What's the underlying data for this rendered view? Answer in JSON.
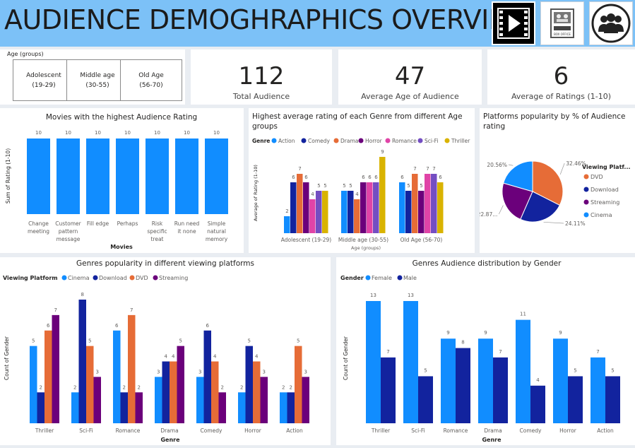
{
  "header": {
    "title": "AUDIENCE DEMOGHRAPHICS OVERVIEW",
    "icons": [
      "video-play-icon",
      "box-office-icon",
      "audience-group-icon"
    ],
    "box_office_label": "BOX OFFICE"
  },
  "slicer": {
    "title": "Age (groups)",
    "items": [
      {
        "name": "Adolescent",
        "range": "(19-29)"
      },
      {
        "name": "Middle age",
        "range": "(30-55)"
      },
      {
        "name": "Old Age",
        "range": "(56-70)"
      }
    ]
  },
  "kpis": [
    {
      "value": "112",
      "label": "Total Audience"
    },
    {
      "value": "47",
      "label": "Average Age of Audience"
    },
    {
      "value": "6",
      "label": "Average of Ratings (1-10)"
    }
  ],
  "colors": {
    "cinema": "#118dff",
    "download": "#12239e",
    "dvd": "#e66c37",
    "streaming": "#6b007b",
    "action": "#118dff",
    "comedy": "#12239e",
    "drama": "#e66c37",
    "horror": "#6b007b",
    "romance": "#e044a7",
    "scifi": "#744ec2",
    "thriller": "#d9b300",
    "female": "#118dff",
    "male": "#12239e"
  },
  "chart_data": [
    {
      "id": "top-movies",
      "type": "bar",
      "title": "Movies with the highest Audience Rating",
      "xlabel": "Movies",
      "ylabel": "Sum of Rating (1-10)",
      "categories": [
        [
          "Change",
          "meeting"
        ],
        [
          "Customer",
          "pattern",
          "message"
        ],
        [
          "Fill edge"
        ],
        [
          "Perhaps"
        ],
        [
          "Risk",
          "specific",
          "treat"
        ],
        [
          "Run need",
          "it none"
        ],
        [
          "Simple",
          "natural",
          "memory"
        ]
      ],
      "values": [
        10,
        10,
        10,
        10,
        10,
        10,
        10
      ],
      "ylim": [
        0,
        10
      ]
    },
    {
      "id": "genre-age",
      "type": "bar",
      "title": "Highest average rating of each Genre from different Age groups",
      "legend_title": "Genre",
      "xlabel": "Age (groups)",
      "ylabel": "Average of Rating (1-10)",
      "categories": [
        "Adolescent (19-29)",
        "Middle age (30-55)",
        "Old Age (56-70)"
      ],
      "series": [
        {
          "name": "Action",
          "values": [
            2,
            5,
            6
          ]
        },
        {
          "name": "Comedy",
          "values": [
            6,
            5,
            5
          ]
        },
        {
          "name": "Drama",
          "values": [
            7,
            4,
            7
          ]
        },
        {
          "name": "Horror",
          "values": [
            6,
            6,
            5
          ]
        },
        {
          "name": "Romance",
          "values": [
            4,
            6,
            7
          ]
        },
        {
          "name": "Sci-Fi",
          "values": [
            5,
            6,
            7
          ]
        },
        {
          "name": "Thriller",
          "values": [
            5,
            9,
            6
          ]
        }
      ],
      "ylim": [
        0,
        10
      ]
    },
    {
      "id": "platform-pie",
      "type": "pie",
      "title": "Platforms popularity by % of Audience rating",
      "legend_title": "Viewing Platf...",
      "labels": [
        "DVD",
        "Download",
        "Streaming",
        "Cinema"
      ],
      "values": [
        32.46,
        24.11,
        22.87,
        20.56
      ],
      "value_labels": [
        "32.46%",
        "24.11%",
        "22.87...",
        "20.56%"
      ]
    },
    {
      "id": "genre-platform",
      "type": "bar",
      "title": "Genres popularity in different viewing platforms",
      "legend_title": "Viewing Platform",
      "xlabel": "Genre",
      "ylabel": "Count of Gender",
      "categories": [
        "Thriller",
        "Sci-Fi",
        "Romance",
        "Drama",
        "Comedy",
        "Horror",
        "Action"
      ],
      "series": [
        {
          "name": "Cinema",
          "values": [
            5,
            2,
            6,
            3,
            3,
            2,
            2
          ]
        },
        {
          "name": "Download",
          "values": [
            2,
            8,
            2,
            4,
            6,
            5,
            2
          ]
        },
        {
          "name": "DVD",
          "values": [
            6,
            5,
            7,
            4,
            4,
            4,
            5
          ]
        },
        {
          "name": "Streaming",
          "values": [
            7,
            3,
            2,
            5,
            2,
            3,
            3
          ]
        }
      ],
      "ylim": [
        0,
        8
      ]
    },
    {
      "id": "genre-gender",
      "type": "bar",
      "title": "Genres Audience distribution by Gender",
      "legend_title": "Gender",
      "xlabel": "Genre",
      "ylabel": "Count of Gender",
      "categories": [
        "Thriller",
        "Sci-Fi",
        "Romance",
        "Drama",
        "Comedy",
        "Horror",
        "Action"
      ],
      "series": [
        {
          "name": "Female",
          "values": [
            13,
            13,
            9,
            9,
            11,
            9,
            7
          ]
        },
        {
          "name": "Male",
          "values": [
            7,
            5,
            8,
            7,
            4,
            5,
            5
          ]
        }
      ],
      "ylim": [
        0,
        13
      ]
    }
  ]
}
